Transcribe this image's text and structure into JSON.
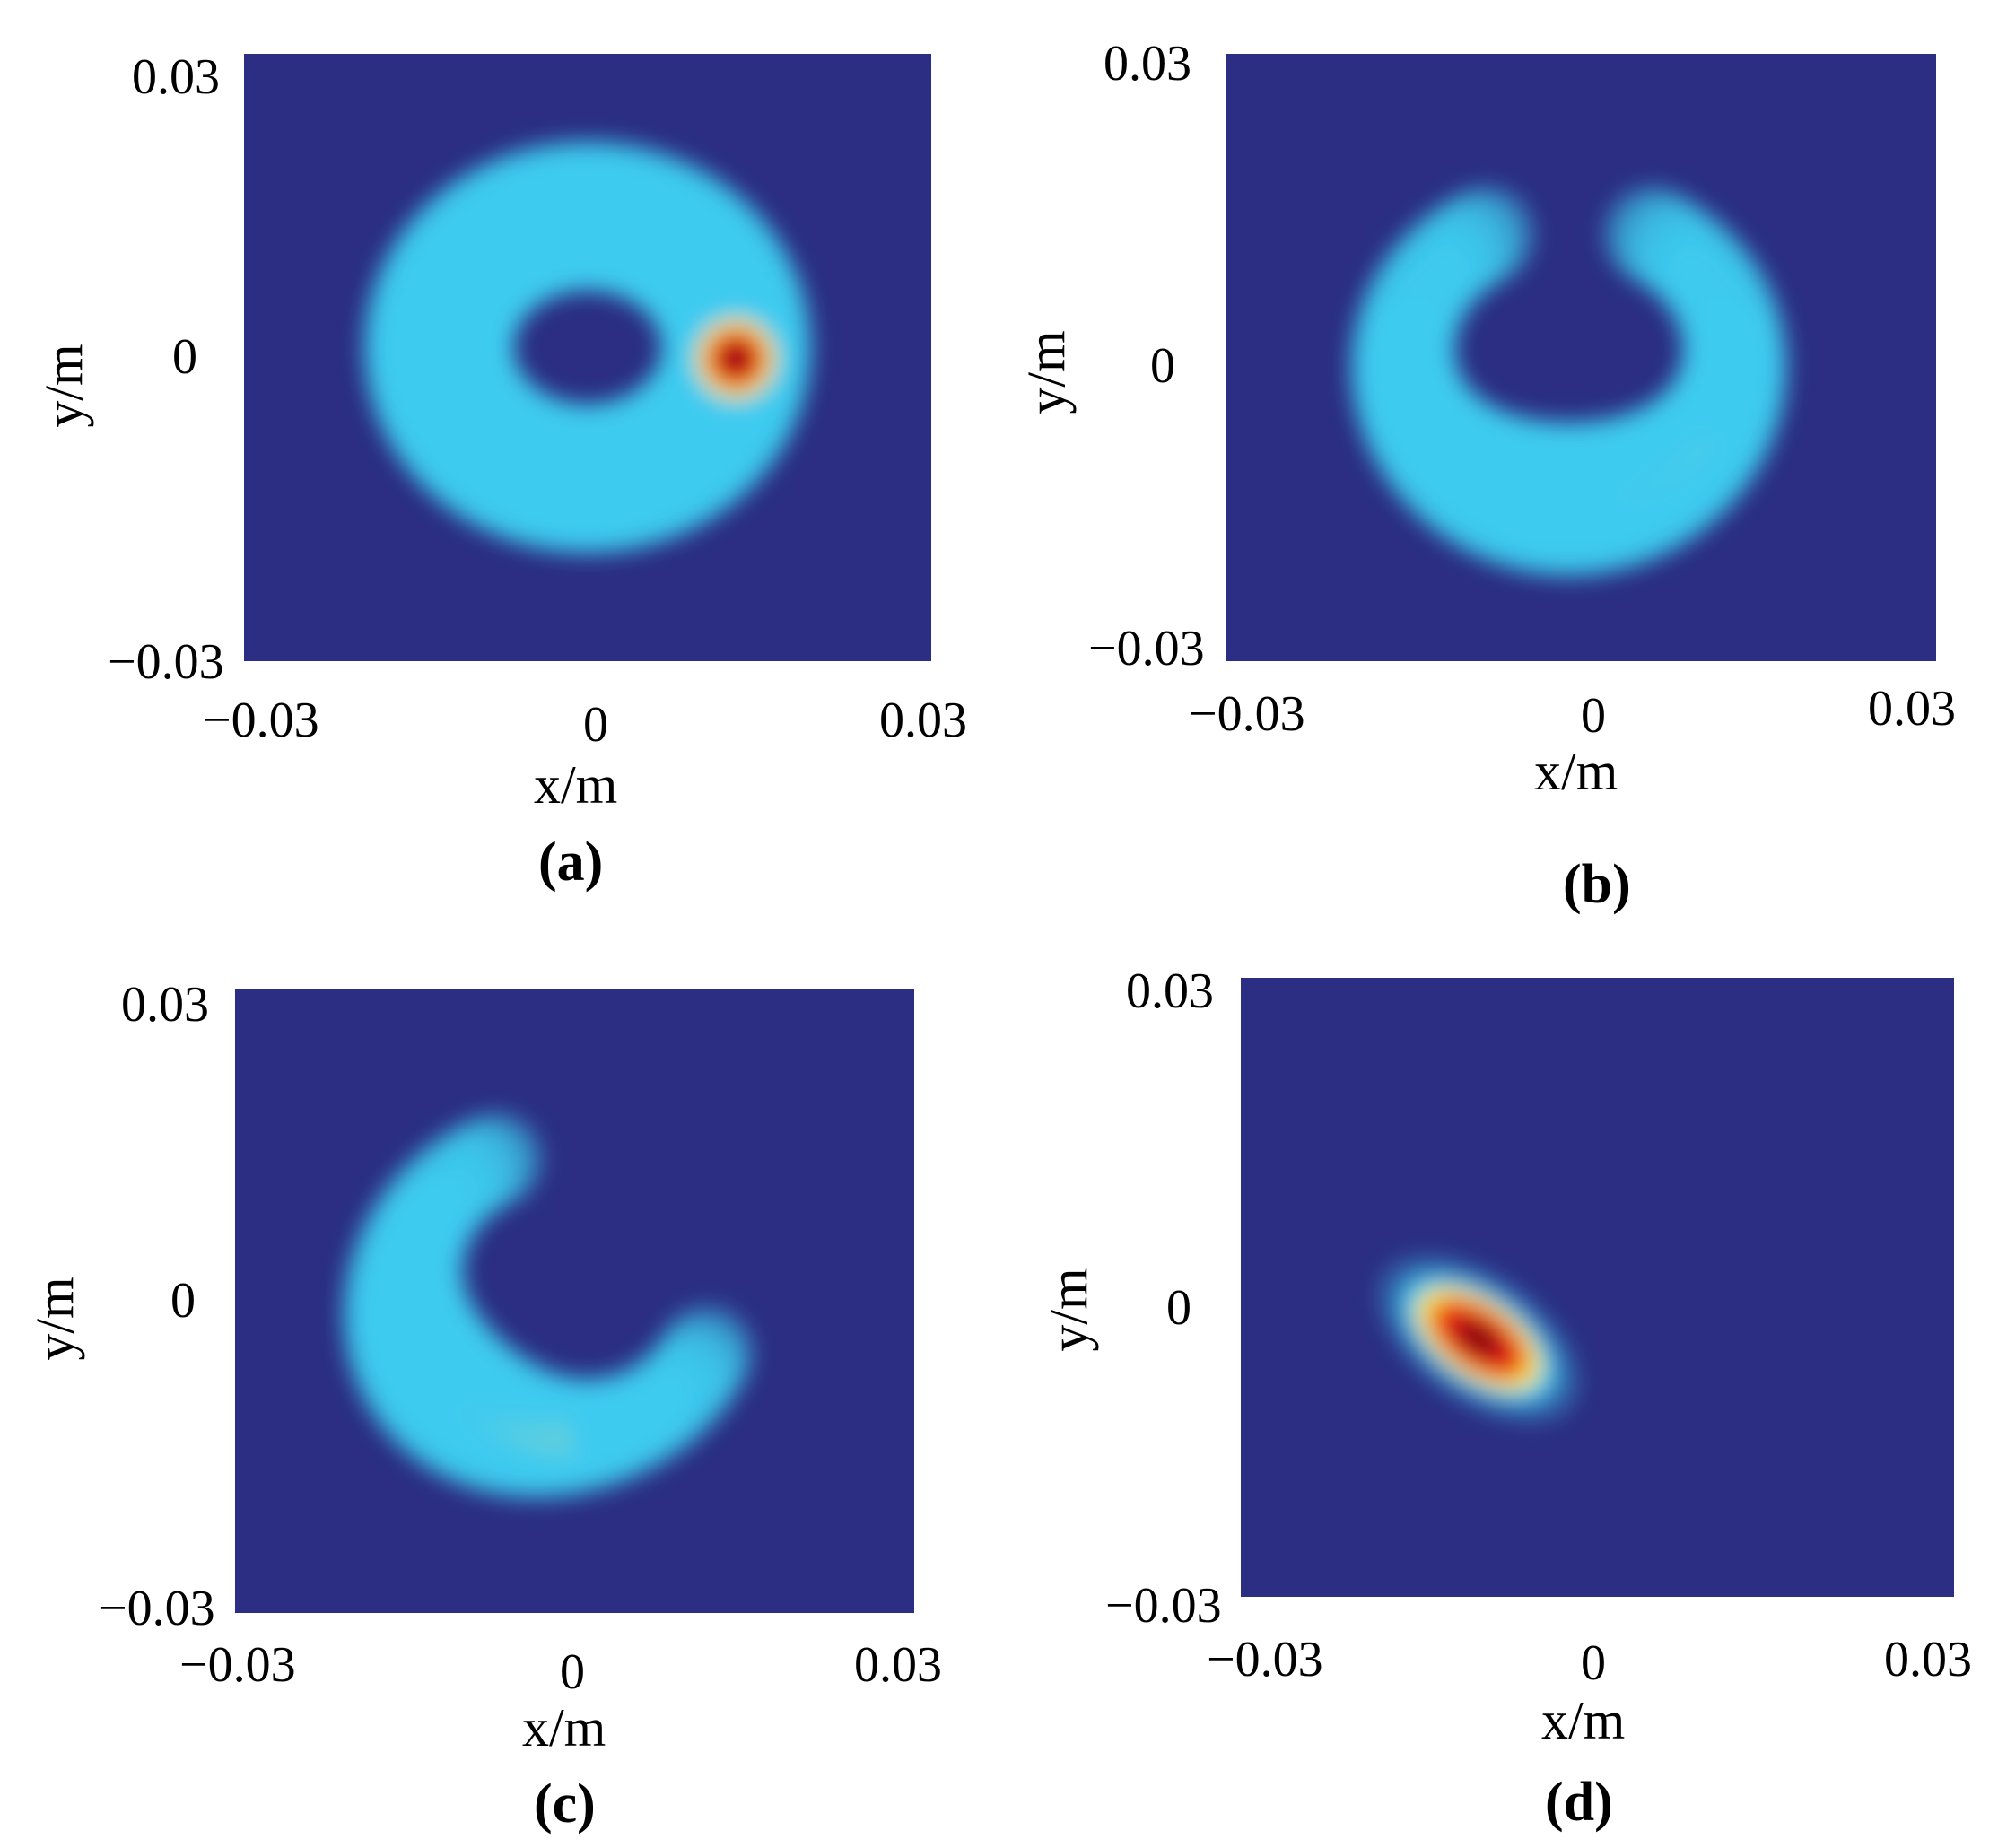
{
  "colors": {
    "background": "#2b2e83",
    "low": "#2b2e83",
    "mid": "#3ecbf0",
    "yellow": "#ffe51a",
    "high": "#e81d1d",
    "peak": "#7a0a0a"
  },
  "chart_data": [
    {
      "type": "heatmap",
      "caption": "(a)",
      "xlabel": "x/m",
      "ylabel": "y/m",
      "xlim": [
        -0.03,
        0.03
      ],
      "ylim": [
        -0.03,
        0.03
      ],
      "xticks": [
        "−0.03",
        "0",
        "0.03"
      ],
      "yticks": [
        "0.03",
        "0",
        "−0.03"
      ],
      "pattern": "full-ring",
      "ring_center": [
        0.0,
        0.001
      ],
      "ring_radius": 0.013,
      "ring_width": 0.006,
      "peak_angle_deg": 270,
      "angular_concentration": 0.0
    },
    {
      "type": "heatmap",
      "caption": "(b)",
      "xlabel": "x/m",
      "ylabel": "y/m",
      "xlim": [
        -0.03,
        0.03
      ],
      "ylim": [
        -0.03,
        0.03
      ],
      "xticks": [
        "−0.03",
        "0",
        "0.03"
      ],
      "yticks": [
        "0.03",
        "0",
        "−0.03"
      ],
      "pattern": "crescent-bottom",
      "ring_center": [
        -0.001,
        0.0
      ],
      "ring_radius": 0.014,
      "ring_width": 0.006,
      "peak_angle_deg": 270,
      "angular_concentration": 1.6
    },
    {
      "type": "heatmap",
      "caption": "(c)",
      "xlabel": "x/m",
      "ylabel": "y/m",
      "xlim": [
        -0.03,
        0.03
      ],
      "ylim": [
        -0.03,
        0.03
      ],
      "xticks": [
        "−0.03",
        "0",
        "0.03"
      ],
      "yticks": [
        "0.03",
        "0",
        "−0.03"
      ],
      "pattern": "crescent-lower-left",
      "ring_center": [
        -0.001,
        0.001
      ],
      "ring_radius": 0.014,
      "ring_width": 0.006,
      "peak_angle_deg": 225,
      "angular_concentration": 2.2
    },
    {
      "type": "heatmap",
      "caption": "(d)",
      "xlabel": "x/m",
      "ylabel": "y/m",
      "xlim": [
        -0.03,
        0.03
      ],
      "ylim": [
        -0.03,
        0.03
      ],
      "xticks": [
        "−0.03",
        "0",
        "0.03"
      ],
      "yticks": [
        "0.03",
        "0",
        "−0.03"
      ],
      "pattern": "spot",
      "spot_center": [
        -0.01,
        -0.005
      ],
      "spot_radius": [
        0.008,
        0.005
      ],
      "spot_angle_deg": -35
    }
  ]
}
